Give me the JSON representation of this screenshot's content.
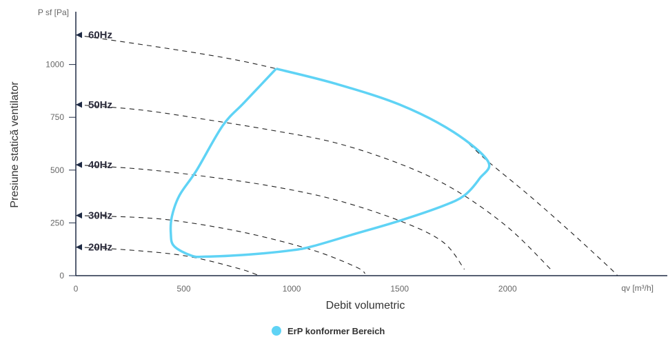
{
  "chart_data": {
    "type": "line",
    "xlabel": "Debit volumetric",
    "ylabel": "Presiune statică ventilator",
    "x_unit": "qv [m³/h]",
    "y_unit": "P sf [Pa]",
    "xlim": [
      0,
      2740
    ],
    "ylim": [
      0,
      1250
    ],
    "x_ticks": [
      0,
      500,
      1000,
      1500,
      2000
    ],
    "y_ticks": [
      0,
      250,
      500,
      750,
      1000
    ],
    "series": [
      {
        "label": "60Hz",
        "color": "#222222",
        "points": [
          [
            0,
            1140
          ],
          [
            400,
            1080
          ],
          [
            700,
            1030
          ],
          [
            928,
            980
          ],
          [
            1200,
            910
          ],
          [
            1500,
            810
          ],
          [
            1750,
            680
          ],
          [
            1910,
            540
          ],
          [
            2100,
            380
          ],
          [
            2300,
            200
          ],
          [
            2470,
            40
          ],
          [
            2510,
            0
          ]
        ]
      },
      {
        "label": "50Hz",
        "color": "#222222",
        "points": [
          [
            0,
            810
          ],
          [
            300,
            785
          ],
          [
            600,
            740
          ],
          [
            900,
            690
          ],
          [
            1200,
            630
          ],
          [
            1500,
            530
          ],
          [
            1750,
            410
          ],
          [
            2000,
            230
          ],
          [
            2200,
            30
          ]
        ]
      },
      {
        "label": "40Hz",
        "color": "#222222",
        "points": [
          [
            0,
            525
          ],
          [
            300,
            505
          ],
          [
            600,
            470
          ],
          [
            900,
            425
          ],
          [
            1200,
            360
          ],
          [
            1500,
            260
          ],
          [
            1700,
            160
          ],
          [
            1800,
            30
          ]
        ]
      },
      {
        "label": "30Hz",
        "color": "#222222",
        "points": [
          [
            0,
            285
          ],
          [
            300,
            275
          ],
          [
            500,
            255
          ],
          [
            800,
            200
          ],
          [
            1100,
            120
          ],
          [
            1300,
            40
          ],
          [
            1340,
            10
          ]
        ]
      },
      {
        "label": "20Hz",
        "color": "#222222",
        "points": [
          [
            0,
            135
          ],
          [
            200,
            125
          ],
          [
            500,
            95
          ],
          [
            750,
            35
          ],
          [
            850,
            0
          ]
        ]
      }
    ],
    "region": {
      "name": "ErP konformer Bereich",
      "color": "#5fd3f5",
      "points": [
        [
          928,
          980
        ],
        [
          1200,
          910
        ],
        [
          1500,
          810
        ],
        [
          1750,
          680
        ],
        [
          1910,
          540
        ],
        [
          1870,
          460
        ],
        [
          1800,
          380
        ],
        [
          1700,
          330
        ],
        [
          1500,
          260
        ],
        [
          1300,
          200
        ],
        [
          1100,
          140
        ],
        [
          1000,
          120
        ],
        [
          800,
          100
        ],
        [
          600,
          90
        ],
        [
          535,
          95
        ],
        [
          455,
          140
        ],
        [
          440,
          200
        ],
        [
          445,
          280
        ],
        [
          480,
          380
        ],
        [
          560,
          500
        ],
        [
          680,
          710
        ],
        [
          780,
          820
        ],
        [
          928,
          980
        ]
      ]
    }
  }
}
